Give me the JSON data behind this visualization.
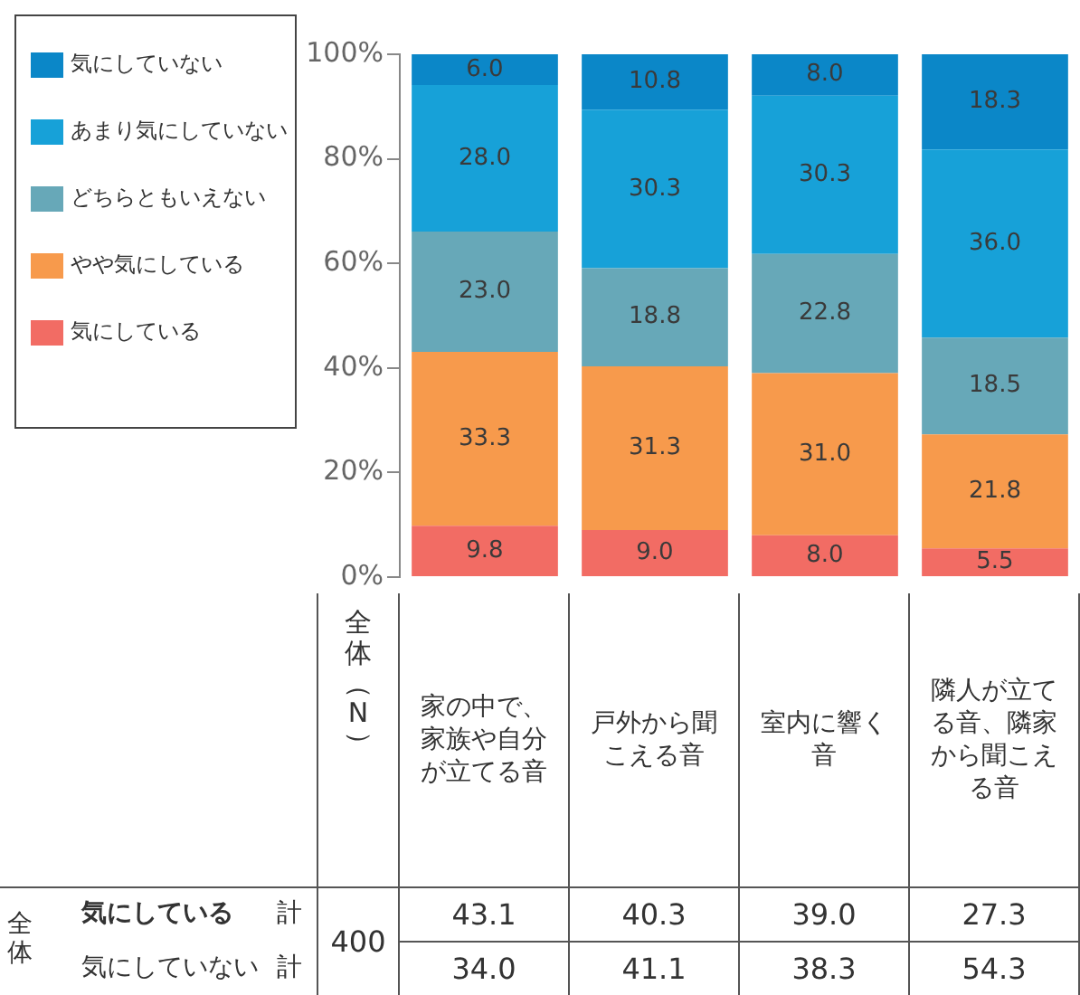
{
  "chart_data": {
    "type": "bar",
    "stacked": true,
    "categories": [
      "家の中で、家族や自分が立てる音",
      "戸外から聞こえる音",
      "室内に響く音",
      "隣人が立てる音、隣家から聞こえる音"
    ],
    "series": [
      {
        "name": "気にしている",
        "color": "#f26c64",
        "values": [
          9.8,
          9.0,
          8.0,
          5.5
        ],
        "value_labels": [
          "9.8",
          "9.0",
          "8.0",
          "5.5"
        ]
      },
      {
        "name": "やや気にしている",
        "color": "#f79a4c",
        "values": [
          33.3,
          31.3,
          31.0,
          21.8
        ],
        "value_labels": [
          "33.3",
          "31.3",
          "31.0",
          "21.8"
        ]
      },
      {
        "name": "どちらともいえない",
        "color": "#67a8b8",
        "values": [
          23.0,
          18.8,
          22.8,
          18.5
        ],
        "value_labels": [
          "23.0",
          "18.8",
          "22.8",
          "18.5"
        ]
      },
      {
        "name": "あまり気にしていない",
        "color": "#17a1d8",
        "values": [
          28.0,
          30.3,
          30.3,
          36.0
        ],
        "value_labels": [
          "28.0",
          "30.3",
          "30.3",
          "36.0"
        ]
      },
      {
        "name": "気にしていない",
        "color": "#0b87c8",
        "values": [
          6.0,
          10.8,
          8.0,
          18.3
        ],
        "value_labels": [
          "6.0",
          "10.8",
          "8.0",
          "18.3"
        ]
      }
    ],
    "ylim": [
      0,
      100
    ],
    "yticks": [
      {
        "value": 0,
        "label": "0%"
      },
      {
        "value": 20,
        "label": "20%"
      },
      {
        "value": 40,
        "label": "40%"
      },
      {
        "value": 60,
        "label": "60%"
      },
      {
        "value": 80,
        "label": "80%"
      },
      {
        "value": 100,
        "label": "100%"
      }
    ],
    "grid": false,
    "legend": "top left",
    "annotations": [
      "全体（N）",
      "全体",
      "気にしている",
      "計",
      "気にしていない",
      "計",
      "400",
      "43.1",
      "40.3",
      "39.0",
      "27.3",
      "34.0",
      "41.1",
      "38.3",
      "54.3"
    ]
  }
}
